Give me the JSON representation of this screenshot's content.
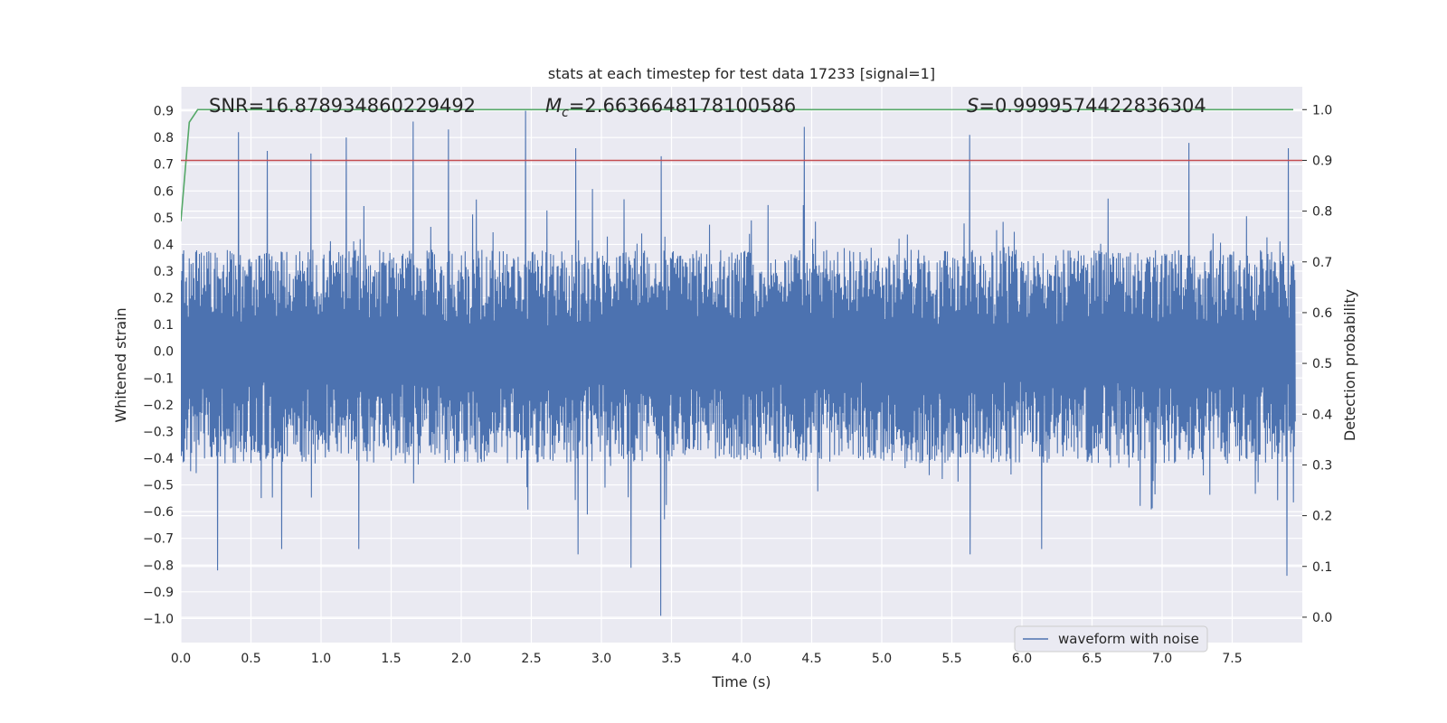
{
  "chart_data": {
    "type": "line",
    "title": "stats at each timestep for test data 17233 [signal=1]",
    "xlabel": "Time (s)",
    "ylabel": "Whitened strain",
    "y2label": "Detection probability",
    "xlim": [
      0,
      8
    ],
    "ylim": [
      -1.09,
      0.99
    ],
    "y2lim": [
      -0.05,
      1.045
    ],
    "xticks": [
      "0.0",
      "0.5",
      "1.0",
      "1.5",
      "2.0",
      "2.5",
      "3.0",
      "3.5",
      "4.0",
      "4.5",
      "5.0",
      "5.5",
      "6.0",
      "6.5",
      "7.0",
      "7.5"
    ],
    "yticks": [
      "0.9",
      "0.8",
      "0.7",
      "0.6",
      "0.5",
      "0.4",
      "0.3",
      "0.2",
      "0.1",
      "0.0",
      "−0.1",
      "−0.2",
      "−0.3",
      "−0.4",
      "−0.5",
      "−0.6",
      "−0.7",
      "−0.8",
      "−0.9",
      "−1.0"
    ],
    "y2ticks": [
      "1.0",
      "0.9",
      "0.8",
      "0.7",
      "0.6",
      "0.5",
      "0.4",
      "0.3",
      "0.2",
      "0.1",
      "0.0"
    ],
    "annotations": {
      "snr": "SNR=16.878934860229492",
      "mc_symbol": "M",
      "mc_sub": "c",
      "mc_value": "=2.6636648178100586",
      "s_symbol": "S",
      "s_value": "=0.9999574422836304"
    },
    "legend": {
      "label": "waveform with noise",
      "position": "lower-right"
    },
    "series": [
      {
        "name": "waveform with noise",
        "axis": "left",
        "color": "#4c72b0",
        "sample_rate_hz": 2048,
        "envelope": {
          "typical_pos": 0.38,
          "typical_neg": -0.42
        },
        "peaks": [
          {
            "t": 0.41,
            "v": 0.82
          },
          {
            "t": 0.62,
            "v": 0.75
          },
          {
            "t": 0.93,
            "v": 0.74
          },
          {
            "t": 1.18,
            "v": 0.8
          },
          {
            "t": 1.66,
            "v": 0.86
          },
          {
            "t": 1.91,
            "v": 0.83
          },
          {
            "t": 2.46,
            "v": 0.9
          },
          {
            "t": 2.82,
            "v": 0.76
          },
          {
            "t": 3.43,
            "v": 0.73
          },
          {
            "t": 4.45,
            "v": 0.84
          },
          {
            "t": 5.63,
            "v": 0.81
          },
          {
            "t": 7.19,
            "v": 0.78
          },
          {
            "t": 7.9,
            "v": 0.76
          }
        ],
        "troughs": [
          {
            "t": 0.26,
            "v": -0.82
          },
          {
            "t": 0.72,
            "v": -0.74
          },
          {
            "t": 1.27,
            "v": -0.74
          },
          {
            "t": 2.83,
            "v": -0.76
          },
          {
            "t": 3.21,
            "v": -0.81
          },
          {
            "t": 3.42,
            "v": -0.99
          },
          {
            "t": 5.63,
            "v": -0.76
          },
          {
            "t": 6.14,
            "v": -0.74
          },
          {
            "t": 7.89,
            "v": -0.84
          }
        ]
      },
      {
        "name": "detection probability",
        "axis": "right",
        "color": "#55a868",
        "x": [
          0.0,
          0.06,
          0.12,
          0.5,
          8.0
        ],
        "y": [
          0.78,
          0.975,
          1.0,
          1.0,
          1.0
        ]
      }
    ],
    "threshold": {
      "axis": "right",
      "value": 0.9,
      "color": "#c44e52"
    }
  }
}
